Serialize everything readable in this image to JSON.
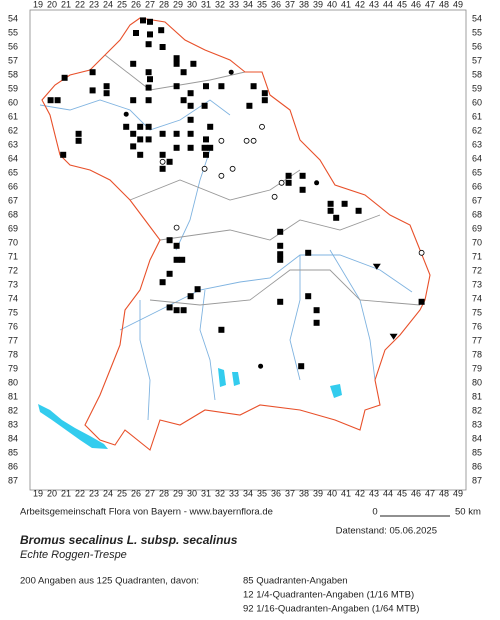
{
  "map": {
    "columns": [
      19,
      20,
      21,
      22,
      23,
      24,
      25,
      26,
      27,
      28,
      29,
      30,
      31,
      32,
      33,
      34,
      35,
      36,
      37,
      38,
      39,
      40,
      41,
      42,
      43,
      44,
      45,
      46,
      47,
      48,
      49
    ],
    "rows": [
      54,
      55,
      56,
      57,
      58,
      59,
      60,
      61,
      62,
      63,
      64,
      65,
      66,
      67,
      68,
      69,
      70,
      71,
      72,
      73,
      74,
      75,
      76,
      77,
      78,
      79,
      80,
      81,
      82,
      83,
      84,
      85,
      86,
      87
    ],
    "records": [
      {
        "col": 26.5,
        "row": 54.1,
        "symbol": "square"
      },
      {
        "col": 27,
        "row": 54.2,
        "symbol": "square"
      },
      {
        "col": 26,
        "row": 55,
        "symbol": "square"
      },
      {
        "col": 27,
        "row": 55.1,
        "symbol": "square"
      },
      {
        "col": 27.8,
        "row": 54.8,
        "symbol": "square"
      },
      {
        "col": 26.9,
        "row": 55.8,
        "symbol": "square"
      },
      {
        "col": 27.9,
        "row": 56,
        "symbol": "square"
      },
      {
        "col": 25.8,
        "row": 57.2,
        "symbol": "square"
      },
      {
        "col": 26.9,
        "row": 57.8,
        "symbol": "square"
      },
      {
        "col": 27,
        "row": 58.3,
        "symbol": "square"
      },
      {
        "col": 26.9,
        "row": 58.9,
        "symbol": "square"
      },
      {
        "col": 28.9,
        "row": 56.8,
        "symbol": "square"
      },
      {
        "col": 28.9,
        "row": 57.2,
        "symbol": "square"
      },
      {
        "col": 29.4,
        "row": 57.8,
        "symbol": "square"
      },
      {
        "col": 30.1,
        "row": 57.2,
        "symbol": "square"
      },
      {
        "col": 22.9,
        "row": 57.8,
        "symbol": "square"
      },
      {
        "col": 20.9,
        "row": 58.2,
        "symbol": "square"
      },
      {
        "col": 22.9,
        "row": 59.1,
        "symbol": "square"
      },
      {
        "col": 23.9,
        "row": 58.8,
        "symbol": "square"
      },
      {
        "col": 23.9,
        "row": 59.3,
        "symbol": "square"
      },
      {
        "col": 19.9,
        "row": 59.8,
        "symbol": "square"
      },
      {
        "col": 20.4,
        "row": 59.8,
        "symbol": "square"
      },
      {
        "col": 25.8,
        "row": 59.8,
        "symbol": "square"
      },
      {
        "col": 26.9,
        "row": 59.8,
        "symbol": "square"
      },
      {
        "col": 28.9,
        "row": 58.8,
        "symbol": "square"
      },
      {
        "col": 29.4,
        "row": 59.8,
        "symbol": "square"
      },
      {
        "col": 29.9,
        "row": 59.3,
        "symbol": "square"
      },
      {
        "col": 29.9,
        "row": 60.2,
        "symbol": "square"
      },
      {
        "col": 31,
        "row": 58.8,
        "symbol": "square"
      },
      {
        "col": 30.9,
        "row": 60.2,
        "symbol": "square"
      },
      {
        "col": 29.9,
        "row": 61.2,
        "symbol": "square"
      },
      {
        "col": 25.3,
        "row": 61.7,
        "symbol": "square"
      },
      {
        "col": 26.3,
        "row": 61.7,
        "symbol": "square"
      },
      {
        "col": 26.9,
        "row": 61.7,
        "symbol": "square"
      },
      {
        "col": 25.8,
        "row": 62.2,
        "symbol": "square"
      },
      {
        "col": 26.3,
        "row": 62.6,
        "symbol": "square"
      },
      {
        "col": 25.8,
        "row": 63.1,
        "symbol": "square"
      },
      {
        "col": 26.3,
        "row": 63.7,
        "symbol": "square"
      },
      {
        "col": 26.9,
        "row": 62.6,
        "symbol": "square"
      },
      {
        "col": 27.9,
        "row": 62.2,
        "symbol": "square"
      },
      {
        "col": 28.9,
        "row": 62.2,
        "symbol": "square"
      },
      {
        "col": 29.9,
        "row": 62.2,
        "symbol": "square"
      },
      {
        "col": 29.9,
        "row": 63.2,
        "symbol": "square"
      },
      {
        "col": 31,
        "row": 62.6,
        "symbol": "square"
      },
      {
        "col": 31.3,
        "row": 61.7,
        "symbol": "square"
      },
      {
        "col": 30.9,
        "row": 63.2,
        "symbol": "square"
      },
      {
        "col": 31.3,
        "row": 63.2,
        "symbol": "square"
      },
      {
        "col": 31,
        "row": 63.7,
        "symbol": "square"
      },
      {
        "col": 28.9,
        "row": 63.2,
        "symbol": "square"
      },
      {
        "col": 27.9,
        "row": 63.7,
        "symbol": "square"
      },
      {
        "col": 28.4,
        "row": 64.2,
        "symbol": "square"
      },
      {
        "col": 27.9,
        "row": 64.7,
        "symbol": "square"
      },
      {
        "col": 21.9,
        "row": 62.2,
        "symbol": "square"
      },
      {
        "col": 21.9,
        "row": 62.7,
        "symbol": "square"
      },
      {
        "col": 20.8,
        "row": 63.7,
        "symbol": "square"
      },
      {
        "col": 34.4,
        "row": 58.8,
        "symbol": "square"
      },
      {
        "col": 35.2,
        "row": 59.3,
        "symbol": "square"
      },
      {
        "col": 35.2,
        "row": 59.8,
        "symbol": "square"
      },
      {
        "col": 34.1,
        "row": 60.2,
        "symbol": "square"
      },
      {
        "col": 32.1,
        "row": 58.8,
        "symbol": "square"
      },
      {
        "col": 36.9,
        "row": 65.2,
        "symbol": "square"
      },
      {
        "col": 37.9,
        "row": 65.2,
        "symbol": "square"
      },
      {
        "col": 36.9,
        "row": 65.7,
        "symbol": "square"
      },
      {
        "col": 37.9,
        "row": 66.2,
        "symbol": "square"
      },
      {
        "col": 39.9,
        "row": 67.2,
        "symbol": "square"
      },
      {
        "col": 39.9,
        "row": 67.7,
        "symbol": "square"
      },
      {
        "col": 40.9,
        "row": 67.2,
        "symbol": "square"
      },
      {
        "col": 41.9,
        "row": 67.7,
        "symbol": "square"
      },
      {
        "col": 40.3,
        "row": 68.2,
        "symbol": "square"
      },
      {
        "col": 36.3,
        "row": 69.2,
        "symbol": "square"
      },
      {
        "col": 36.3,
        "row": 70.2,
        "symbol": "square"
      },
      {
        "col": 36.3,
        "row": 71.2,
        "symbol": "square"
      },
      {
        "col": 36.3,
        "row": 70.8,
        "symbol": "square"
      },
      {
        "col": 38.3,
        "row": 70.7,
        "symbol": "square"
      },
      {
        "col": 28.4,
        "row": 69.8,
        "symbol": "square"
      },
      {
        "col": 28.9,
        "row": 70.2,
        "symbol": "square"
      },
      {
        "col": 28.9,
        "row": 71.2,
        "symbol": "square"
      },
      {
        "col": 29.3,
        "row": 71.2,
        "symbol": "square"
      },
      {
        "col": 28.4,
        "row": 72.2,
        "symbol": "square"
      },
      {
        "col": 27.9,
        "row": 72.8,
        "symbol": "square"
      },
      {
        "col": 30.4,
        "row": 73.3,
        "symbol": "square"
      },
      {
        "col": 29.9,
        "row": 73.8,
        "symbol": "square"
      },
      {
        "col": 28.4,
        "row": 74.6,
        "symbol": "square"
      },
      {
        "col": 28.9,
        "row": 74.8,
        "symbol": "square"
      },
      {
        "col": 29.4,
        "row": 74.8,
        "symbol": "square"
      },
      {
        "col": 32.1,
        "row": 76.2,
        "symbol": "square"
      },
      {
        "col": 36.3,
        "row": 74.2,
        "symbol": "square"
      },
      {
        "col": 38.3,
        "row": 73.8,
        "symbol": "square"
      },
      {
        "col": 38.9,
        "row": 74.8,
        "symbol": "square"
      },
      {
        "col": 38.9,
        "row": 75.7,
        "symbol": "square"
      },
      {
        "col": 46.4,
        "row": 74.2,
        "symbol": "square"
      },
      {
        "col": 37.8,
        "row": 78.8,
        "symbol": "square"
      },
      {
        "col": 32.1,
        "row": 62.7,
        "symbol": "circle"
      },
      {
        "col": 33.9,
        "row": 62.7,
        "symbol": "circle"
      },
      {
        "col": 34.4,
        "row": 62.7,
        "symbol": "circle"
      },
      {
        "col": 35,
        "row": 61.7,
        "symbol": "circle"
      },
      {
        "col": 32.9,
        "row": 64.7,
        "symbol": "circle"
      },
      {
        "col": 32.1,
        "row": 65.2,
        "symbol": "circle"
      },
      {
        "col": 30.9,
        "row": 64.7,
        "symbol": "circle"
      },
      {
        "col": 36.4,
        "row": 65.7,
        "symbol": "circle"
      },
      {
        "col": 35.9,
        "row": 66.7,
        "symbol": "circle"
      },
      {
        "col": 28.9,
        "row": 68.9,
        "symbol": "circle"
      },
      {
        "col": 46.4,
        "row": 70.7,
        "symbol": "circle"
      },
      {
        "col": 27.9,
        "row": 64.2,
        "symbol": "circle"
      },
      {
        "col": 32.8,
        "row": 57.8,
        "symbol": "dot"
      },
      {
        "col": 38.9,
        "row": 65.7,
        "symbol": "dot"
      },
      {
        "col": 34.9,
        "row": 78.8,
        "symbol": "dot"
      },
      {
        "col": 25.3,
        "row": 60.8,
        "symbol": "dot"
      },
      {
        "col": 43.2,
        "row": 71.7,
        "symbol": "triangle"
      },
      {
        "col": 44.4,
        "row": 76.7,
        "symbol": "triangle"
      }
    ],
    "credit": "Arbeitsgemeinschaft Flora von Bayern - www.bayernflora.de",
    "scale_start": "0",
    "scale_end": "50 km",
    "date": "Datenstand: 05.06.2025",
    "title": "Bromus secalinus L. subsp. secalinus",
    "subtitle": "Echte Roggen-Trespe",
    "summary": "200 Angaben aus 125 Quadranten, davon:",
    "counts": [
      "85 Quadranten-Angaben",
      "12 1/4-Quadranten-Angaben (1/16 MTB)",
      "92 1/16-Quadranten-Angaben (1/64 MTB)"
    ]
  }
}
